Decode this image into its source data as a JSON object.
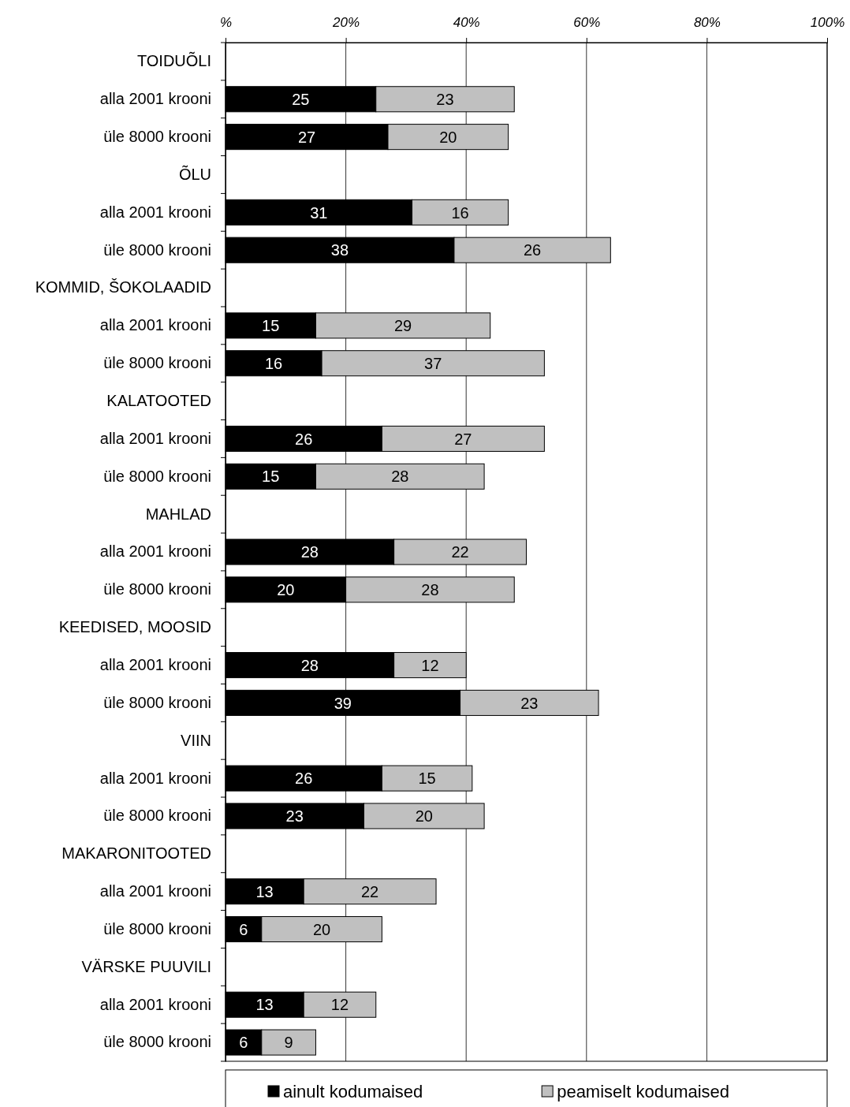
{
  "chart_data": {
    "type": "bar",
    "orientation": "horizontal",
    "stacked": true,
    "data_labels": true,
    "grid": "x",
    "legend": "bottom",
    "categories": [
      "TOIDUÕLI",
      "alla 2001 krooni",
      "üle 8000 krooni",
      "ÕLU",
      "alla 2001 krooni",
      "üle 8000 krooni",
      "KOMMID, ŠOKOLAADID",
      "alla 2001 krooni",
      "üle 8000 krooni",
      "KALATOOTED",
      "alla 2001 krooni",
      "üle 8000 krooni",
      "MAHLAD",
      "alla 2001 krooni",
      "üle 8000 krooni",
      "KEEDISED, MOOSID",
      "alla 2001 krooni",
      "üle 8000 krooni",
      "VIIN",
      "alla 2001 krooni",
      "üle 8000 krooni",
      "MAKARONITOOTED",
      "alla 2001 krooni",
      "üle 8000 krooni",
      "VÄRSKE PUUVILI",
      "alla 2001 krooni",
      "üle 8000 krooni"
    ],
    "series": [
      {
        "name": "ainult kodumaised",
        "color": "#000000",
        "values": [
          null,
          25,
          27,
          null,
          31,
          38,
          null,
          15,
          16,
          null,
          26,
          15,
          null,
          28,
          20,
          null,
          28,
          39,
          null,
          26,
          23,
          null,
          13,
          6,
          null,
          13,
          6
        ]
      },
      {
        "name": "peamiselt kodumaised",
        "color": "#c0c0c0",
        "values": [
          null,
          23,
          20,
          null,
          16,
          26,
          null,
          29,
          37,
          null,
          27,
          28,
          null,
          22,
          28,
          null,
          12,
          23,
          null,
          15,
          20,
          null,
          22,
          20,
          null,
          12,
          9
        ]
      }
    ],
    "xlim": [
      0,
      100
    ],
    "xticks": [
      {
        "value": 0,
        "label": "%"
      },
      {
        "value": 20,
        "label": "20%"
      },
      {
        "value": 40,
        "label": "40%"
      },
      {
        "value": 60,
        "label": "60%"
      },
      {
        "value": 80,
        "label": "80%"
      },
      {
        "value": 100,
        "label": "100%"
      }
    ]
  }
}
